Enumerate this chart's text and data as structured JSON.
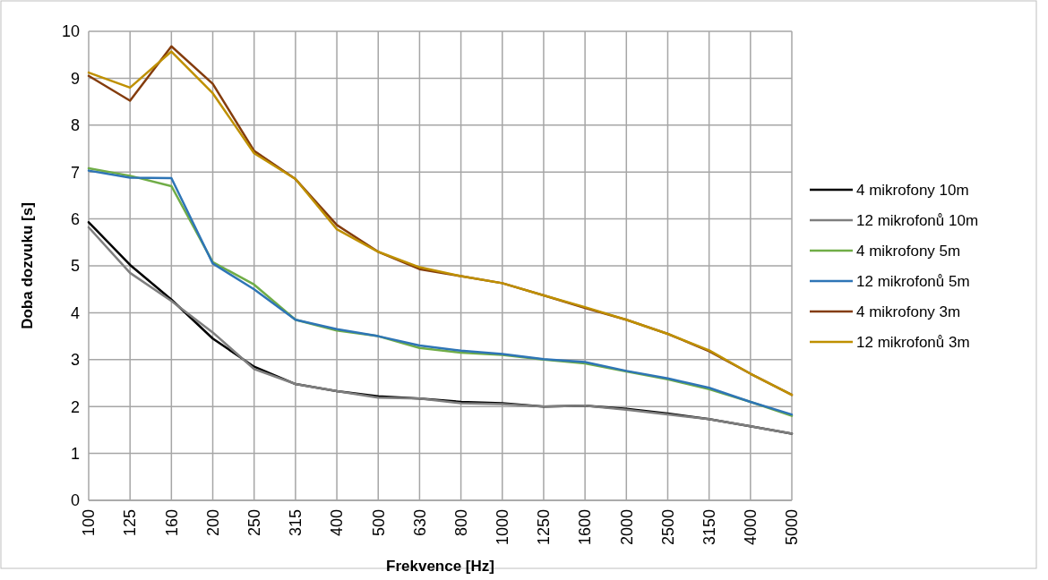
{
  "chart_data": {
    "type": "line",
    "xlabel": "Frekvence [Hz]",
    "ylabel": "Doba dozvuku [s]",
    "categories": [
      "100",
      "125",
      "160",
      "200",
      "250",
      "315",
      "400",
      "500",
      "630",
      "800",
      "1000",
      "1250",
      "1600",
      "2000",
      "2500",
      "3150",
      "4000",
      "5000"
    ],
    "ylim": [
      0,
      10
    ],
    "yticks": [
      0,
      1,
      2,
      3,
      4,
      5,
      6,
      7,
      8,
      9,
      10
    ],
    "grid": true,
    "legend": "right",
    "marker": "none",
    "line_style": "solid",
    "series": [
      {
        "name": "4 mikrofony 10m",
        "color": "#000000",
        "values": [
          5.93,
          5.02,
          4.28,
          3.45,
          2.85,
          2.48,
          2.33,
          2.22,
          2.17,
          2.1,
          2.07,
          2.0,
          2.02,
          1.95,
          1.85,
          1.73,
          1.58,
          1.42
        ]
      },
      {
        "name": "12 mikrofonů 10m",
        "color": "#7f7f7f",
        "values": [
          5.82,
          4.85,
          4.25,
          3.58,
          2.8,
          2.48,
          2.33,
          2.19,
          2.17,
          2.07,
          2.05,
          2.0,
          2.02,
          1.93,
          1.83,
          1.73,
          1.58,
          1.42
        ]
      },
      {
        "name": "4 mikrofony 5m",
        "color": "#70ad47",
        "values": [
          7.08,
          6.92,
          6.7,
          5.08,
          4.6,
          3.85,
          3.62,
          3.5,
          3.25,
          3.15,
          3.1,
          3.0,
          2.92,
          2.75,
          2.58,
          2.37,
          2.1,
          1.8
        ]
      },
      {
        "name": "12 mikrofonů 5m",
        "color": "#2e75b6",
        "values": [
          7.03,
          6.88,
          6.87,
          5.05,
          4.5,
          3.85,
          3.65,
          3.5,
          3.3,
          3.19,
          3.12,
          3.01,
          2.95,
          2.76,
          2.6,
          2.4,
          2.1,
          1.83
        ]
      },
      {
        "name": "4 mikrofony 3m",
        "color": "#843c0c",
        "values": [
          9.05,
          8.52,
          9.68,
          8.88,
          7.45,
          6.85,
          5.87,
          5.3,
          4.93,
          4.78,
          4.63,
          4.37,
          4.1,
          3.85,
          3.55,
          3.18,
          2.7,
          2.25
        ]
      },
      {
        "name": "12 mikrofonů 3m",
        "color": "#bf9000",
        "values": [
          9.12,
          8.8,
          9.57,
          8.68,
          7.4,
          6.85,
          5.78,
          5.3,
          4.97,
          4.78,
          4.63,
          4.37,
          4.12,
          3.85,
          3.55,
          3.2,
          2.7,
          2.25
        ]
      }
    ]
  }
}
